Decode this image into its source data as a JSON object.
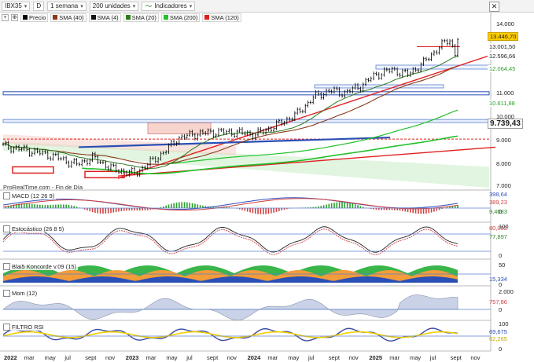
{
  "toolbar": {
    "symbol": "IBX35",
    "d_button": "D",
    "period": "1 semana",
    "units": "200 unidades",
    "indicators": "Indicadores"
  },
  "legend": [
    {
      "label": "Precio",
      "color": "#000000"
    },
    {
      "label": "SMA (40)",
      "color": "#8b3a1a"
    },
    {
      "label": "SMA (4)",
      "color": "#111111"
    },
    {
      "label": "SMA (20)",
      "color": "#2d7a1e"
    },
    {
      "label": "SMA (200)",
      "color": "#22c02a"
    },
    {
      "label": "SMA (120)",
      "color": "#e02020"
    }
  ],
  "watermark": "ProRealTime.com - Fin de Día",
  "price_axis": {
    "ticks": [
      "14.000",
      "11.000",
      "10.000",
      "9.000",
      "8.000",
      "7.000"
    ],
    "labels": [
      {
        "text": "13.446,70",
        "color": "#222222",
        "bg": "#ffcc00"
      },
      {
        "text": "13.001,50",
        "color": "#222222",
        "bg": "#ffffff"
      },
      {
        "text": "12.596,66",
        "color": "#222222",
        "bg": "#ffffff"
      },
      {
        "text": "12.064,45",
        "color": "#2d9f2d",
        "bg": "#ffffff"
      },
      {
        "text": "10.611,88",
        "color": "#2d9f2d",
        "bg": "#ffffff"
      },
      {
        "text": "9.739,43",
        "color": "#222222",
        "bg": "#ffffff"
      }
    ]
  },
  "panes": {
    "macd": {
      "label": "MACD (12 26 9)",
      "values": [
        "398,64",
        "389,23",
        "9,4033"
      ],
      "ticks": [
        "0"
      ]
    },
    "stoch": {
      "label": "Estocástico (26 8 5)",
      "values": [
        "80,092",
        "77,897"
      ],
      "ticks": [
        "100",
        "0"
      ]
    },
    "blai5": {
      "label": "Blai5 Koncorde v.09 (15)",
      "values": [
        "15,334"
      ],
      "ticks": [
        "50",
        "0"
      ]
    },
    "mom": {
      "label": "Mom (12)",
      "values": [
        "757,86"
      ],
      "ticks": [
        "2.000",
        "0"
      ]
    },
    "rsi": {
      "label": "FILTRO RSI",
      "values": [
        "69,675",
        "62,265"
      ],
      "ticks": [
        "100",
        "0"
      ]
    }
  },
  "x_axis": [
    "2022",
    "mar",
    "may",
    "jul",
    "sept",
    "nov",
    "2023",
    "mar",
    "may",
    "jul",
    "sept",
    "nov",
    "2024",
    "mar",
    "may",
    "jul",
    "sept",
    "nov",
    "2025",
    "mar",
    "may",
    "jul",
    "sept",
    "nov"
  ],
  "colors": {
    "up": "#20a020",
    "down": "#d02020",
    "support_blue": "#2a4fb5",
    "trend_red": "#e02020"
  }
}
